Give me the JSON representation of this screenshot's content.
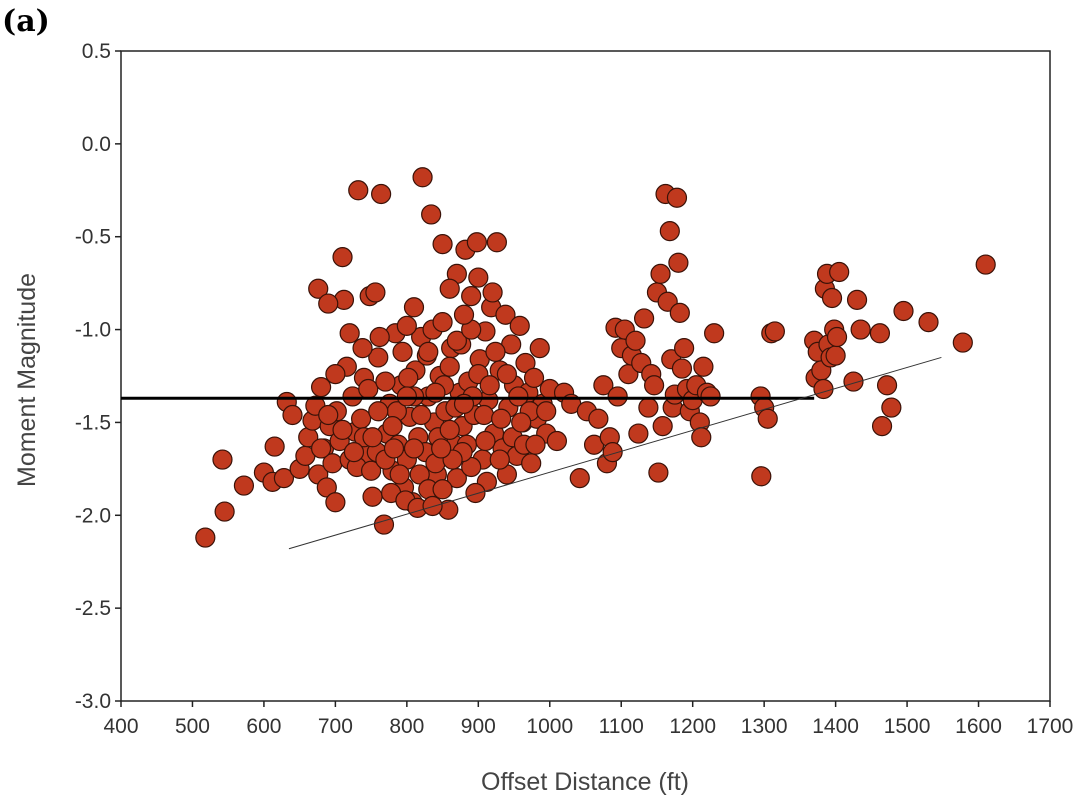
{
  "panel_label": "(a)",
  "chart_data": {
    "type": "scatter",
    "title": "",
    "xlabel": "Offset Distance (ft)",
    "ylabel": "Moment Magnitude",
    "xlim": [
      400,
      1700
    ],
    "ylim": [
      -3.0,
      0.5
    ],
    "x_ticks": [
      400,
      500,
      600,
      700,
      800,
      900,
      1000,
      1100,
      1200,
      1300,
      1400,
      1500,
      1600,
      1700
    ],
    "y_ticks": [
      0.5,
      0.0,
      -0.5,
      -1.0,
      -1.5,
      -2.0,
      -2.5,
      -3.0
    ],
    "grid": false,
    "legend": "none",
    "marker_color": "#c0391e",
    "marker_edge_color": "#3a1208",
    "reference_lines": [
      {
        "kind": "horizontal",
        "x": [
          400,
          1370
        ],
        "y": [
          -1.37,
          -1.37
        ],
        "color": "#000000"
      },
      {
        "kind": "trend",
        "x": [
          635,
          1548
        ],
        "y": [
          -2.18,
          -1.15
        ],
        "color": "#333333"
      }
    ],
    "series": [
      {
        "points": [
          [
            518,
            -2.12
          ],
          [
            545,
            -1.98
          ],
          [
            542,
            -1.7
          ],
          [
            572,
            -1.84
          ],
          [
            600,
            -1.77
          ],
          [
            612,
            -1.82
          ],
          [
            615,
            -1.63
          ],
          [
            628,
            -1.8
          ],
          [
            632,
            -1.39
          ],
          [
            640,
            -1.46
          ],
          [
            650,
            -1.75
          ],
          [
            658,
            -1.68
          ],
          [
            662,
            -1.58
          ],
          [
            668,
            -1.49
          ],
          [
            672,
            -1.41
          ],
          [
            676,
            -1.78
          ],
          [
            680,
            -1.31
          ],
          [
            684,
            -1.64
          ],
          [
            688,
            -1.85
          ],
          [
            692,
            -1.52
          ],
          [
            696,
            -1.72
          ],
          [
            700,
            -1.93
          ],
          [
            702,
            -1.44
          ],
          [
            706,
            -1.6
          ],
          [
            710,
            -0.61
          ],
          [
            712,
            -0.84
          ],
          [
            676,
            -0.78
          ],
          [
            690,
            -0.86
          ],
          [
            716,
            -1.2
          ],
          [
            720,
            -1.7
          ],
          [
            724,
            -1.36
          ],
          [
            728,
            -1.55
          ],
          [
            732,
            -0.25
          ],
          [
            736,
            -1.48
          ],
          [
            740,
            -1.26
          ],
          [
            744,
            -1.67
          ],
          [
            748,
            -0.82
          ],
          [
            752,
            -1.9
          ],
          [
            756,
            -0.8
          ],
          [
            760,
            -1.15
          ],
          [
            764,
            -0.27
          ],
          [
            768,
            -2.05
          ],
          [
            772,
            -1.56
          ],
          [
            776,
            -1.4
          ],
          [
            780,
            -1.76
          ],
          [
            784,
            -1.02
          ],
          [
            788,
            -1.62
          ],
          [
            792,
            -1.3
          ],
          [
            796,
            -1.85
          ],
          [
            800,
            -1.7
          ],
          [
            804,
            -1.47
          ],
          [
            808,
            -1.93
          ],
          [
            812,
            -1.22
          ],
          [
            816,
            -1.58
          ],
          [
            820,
            -1.04
          ],
          [
            822,
            -0.18
          ],
          [
            826,
            -1.66
          ],
          [
            830,
            -1.36
          ],
          [
            834,
            -0.38
          ],
          [
            838,
            -1.5
          ],
          [
            842,
            -1.78
          ],
          [
            846,
            -1.25
          ],
          [
            850,
            -0.54
          ],
          [
            854,
            -1.44
          ],
          [
            858,
            -1.97
          ],
          [
            862,
            -1.1
          ],
          [
            866,
            -1.62
          ],
          [
            870,
            -0.7
          ],
          [
            874,
            -1.34
          ],
          [
            878,
            -1.52
          ],
          [
            882,
            -0.57
          ],
          [
            886,
            -1.28
          ],
          [
            890,
            -0.82
          ],
          [
            894,
            -1.46
          ],
          [
            898,
            -0.53
          ],
          [
            902,
            -1.16
          ],
          [
            906,
            -1.7
          ],
          [
            910,
            -1.01
          ],
          [
            914,
            -1.38
          ],
          [
            918,
            -0.88
          ],
          [
            922,
            -1.56
          ],
          [
            926,
            -0.53
          ],
          [
            930,
            -1.22
          ],
          [
            934,
            -1.64
          ],
          [
            938,
            -0.92
          ],
          [
            942,
            -1.42
          ],
          [
            946,
            -1.08
          ],
          [
            950,
            -1.3
          ],
          [
            954,
            -1.68
          ],
          [
            958,
            -0.98
          ],
          [
            962,
            -1.5
          ],
          [
            966,
            -1.18
          ],
          [
            970,
            -1.34
          ],
          [
            974,
            -1.72
          ],
          [
            978,
            -1.26
          ],
          [
            982,
            -1.48
          ],
          [
            986,
            -1.1
          ],
          [
            990,
            -1.4
          ],
          [
            995,
            -1.56
          ],
          [
            1000,
            -1.32
          ],
          [
            1010,
            -1.6
          ],
          [
            1020,
            -1.34
          ],
          [
            1030,
            -1.4
          ],
          [
            1042,
            -1.8
          ],
          [
            1052,
            -1.44
          ],
          [
            1062,
            -1.62
          ],
          [
            1068,
            -1.48
          ],
          [
            1075,
            -1.3
          ],
          [
            1080,
            -1.72
          ],
          [
            1084,
            -1.58
          ],
          [
            1088,
            -1.66
          ],
          [
            1092,
            -0.99
          ],
          [
            1095,
            -1.36
          ],
          [
            1100,
            -1.1
          ],
          [
            1105,
            -1.0
          ],
          [
            1110,
            -1.24
          ],
          [
            1115,
            -1.14
          ],
          [
            1120,
            -1.06
          ],
          [
            1124,
            -1.56
          ],
          [
            1128,
            -1.18
          ],
          [
            1132,
            -0.94
          ],
          [
            1138,
            -1.42
          ],
          [
            1142,
            -1.24
          ],
          [
            1146,
            -1.3
          ],
          [
            1150,
            -0.8
          ],
          [
            1152,
            -1.77
          ],
          [
            1155,
            -0.7
          ],
          [
            1158,
            -1.52
          ],
          [
            1162,
            -0.27
          ],
          [
            1165,
            -0.85
          ],
          [
            1168,
            -0.47
          ],
          [
            1170,
            -1.16
          ],
          [
            1172,
            -1.42
          ],
          [
            1175,
            -1.35
          ],
          [
            1178,
            -0.29
          ],
          [
            1180,
            -0.64
          ],
          [
            1182,
            -0.91
          ],
          [
            1185,
            -1.21
          ],
          [
            1188,
            -1.1
          ],
          [
            1192,
            -1.32
          ],
          [
            1196,
            -1.44
          ],
          [
            1200,
            -1.38
          ],
          [
            1205,
            -1.3
          ],
          [
            1210,
            -1.5
          ],
          [
            1212,
            -1.58
          ],
          [
            1215,
            -1.2
          ],
          [
            1220,
            -1.34
          ],
          [
            1225,
            -1.36
          ],
          [
            1230,
            -1.02
          ],
          [
            1295,
            -1.36
          ],
          [
            1296,
            -1.79
          ],
          [
            1300,
            -1.42
          ],
          [
            1305,
            -1.48
          ],
          [
            1310,
            -1.02
          ],
          [
            1315,
            -1.01
          ],
          [
            1370,
            -1.06
          ],
          [
            1372,
            -1.26
          ],
          [
            1375,
            -1.12
          ],
          [
            1380,
            -1.22
          ],
          [
            1383,
            -1.32
          ],
          [
            1385,
            -0.78
          ],
          [
            1388,
            -0.7
          ],
          [
            1390,
            -1.08
          ],
          [
            1393,
            -1.15
          ],
          [
            1395,
            -0.83
          ],
          [
            1398,
            -1.0
          ],
          [
            1400,
            -1.14
          ],
          [
            1402,
            -1.04
          ],
          [
            1405,
            -0.69
          ],
          [
            1425,
            -1.28
          ],
          [
            1430,
            -0.84
          ],
          [
            1435,
            -1.0
          ],
          [
            1462,
            -1.02
          ],
          [
            1465,
            -1.52
          ],
          [
            1472,
            -1.3
          ],
          [
            1478,
            -1.42
          ],
          [
            1495,
            -0.9
          ],
          [
            1530,
            -0.96
          ],
          [
            1578,
            -1.07
          ],
          [
            1610,
            -0.65
          ],
          [
            700,
            -1.24
          ],
          [
            720,
            -1.02
          ],
          [
            730,
            -1.74
          ],
          [
            738,
            -1.1
          ],
          [
            746,
            -1.32
          ],
          [
            758,
            -1.66
          ],
          [
            762,
            -1.04
          ],
          [
            770,
            -1.28
          ],
          [
            778,
            -1.88
          ],
          [
            786,
            -1.44
          ],
          [
            794,
            -1.12
          ],
          [
            802,
            -1.26
          ],
          [
            810,
            -1.36
          ],
          [
            818,
            -1.78
          ],
          [
            828,
            -1.14
          ],
          [
            836,
            -1.0
          ],
          [
            844,
            -1.58
          ],
          [
            852,
            -1.3
          ],
          [
            860,
            -1.2
          ],
          [
            868,
            -1.42
          ],
          [
            876,
            -1.08
          ],
          [
            884,
            -1.62
          ],
          [
            892,
            -1.36
          ],
          [
            900,
            -1.24
          ],
          [
            908,
            -1.46
          ],
          [
            916,
            -1.3
          ],
          [
            924,
            -1.12
          ],
          [
            932,
            -1.48
          ],
          [
            940,
            -1.24
          ],
          [
            948,
            -1.58
          ],
          [
            956,
            -1.36
          ],
          [
            964,
            -1.62
          ],
          [
            972,
            -1.44
          ],
          [
            760,
            -1.44
          ],
          [
            780,
            -1.52
          ],
          [
            800,
            -1.36
          ],
          [
            820,
            -1.46
          ],
          [
            840,
            -1.34
          ],
          [
            860,
            -1.54
          ],
          [
            880,
            -1.4
          ],
          [
            800,
            -0.98
          ],
          [
            810,
            -0.88
          ],
          [
            830,
            -1.12
          ],
          [
            850,
            -0.96
          ],
          [
            870,
            -1.06
          ],
          [
            890,
            -1.0
          ],
          [
            860,
            -0.78
          ],
          [
            880,
            -0.92
          ],
          [
            900,
            -0.72
          ],
          [
            920,
            -0.8
          ],
          [
            740,
            -1.58
          ],
          [
            750,
            -1.76
          ],
          [
            770,
            -1.7
          ],
          [
            790,
            -1.78
          ],
          [
            810,
            -1.64
          ],
          [
            830,
            -1.86
          ],
          [
            840,
            -1.72
          ],
          [
            870,
            -1.8
          ],
          [
            890,
            -1.74
          ],
          [
            910,
            -1.6
          ],
          [
            680,
            -1.64
          ],
          [
            690,
            -1.46
          ],
          [
            710,
            -1.54
          ],
          [
            726,
            -1.66
          ],
          [
            752,
            -1.58
          ],
          [
            782,
            -1.64
          ],
          [
            798,
            -1.92
          ],
          [
            815,
            -1.96
          ],
          [
            836,
            -1.95
          ],
          [
            850,
            -1.86
          ],
          [
            940,
            -1.78
          ],
          [
            960,
            -1.5
          ],
          [
            980,
            -1.62
          ],
          [
            995,
            -1.44
          ],
          [
            930,
            -1.7
          ],
          [
            912,
            -1.82
          ],
          [
            896,
            -1.88
          ],
          [
            878,
            -1.66
          ],
          [
            864,
            -1.7
          ],
          [
            848,
            -1.64
          ]
        ]
      }
    ]
  }
}
